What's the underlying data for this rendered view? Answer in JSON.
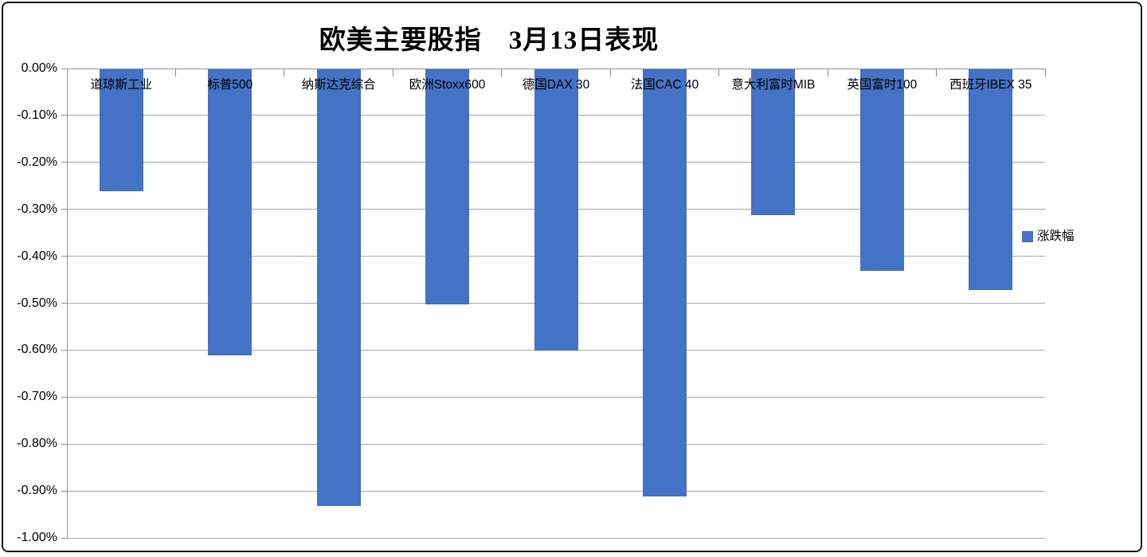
{
  "chart_data": {
    "type": "bar",
    "title": "欧美主要股指　3月13日表现",
    "categories": [
      "道琼斯工业",
      "标普500",
      "纳斯达克综合",
      "欧洲Stoxx600",
      "德国DAX 30",
      "法国CAC 40",
      "意大利富时MIB",
      "英国富时100",
      "西班牙IBEX 35"
    ],
    "series": [
      {
        "name": "涨跌幅",
        "values": [
          -0.26,
          -0.61,
          -0.93,
          -0.5,
          -0.6,
          -0.91,
          -0.31,
          -0.43,
          -0.47
        ]
      }
    ],
    "value_unit": "%",
    "xlabel": "",
    "ylabel": "",
    "ylim": [
      -1.0,
      0.0
    ],
    "ytick_step": 0.1,
    "ytick_labels": [
      "0.00%",
      "-0.10%",
      "-0.20%",
      "-0.30%",
      "-0.40%",
      "-0.50%",
      "-0.60%",
      "-0.70%",
      "-0.80%",
      "-0.90%",
      "-1.00%"
    ],
    "grid": true,
    "legend_position": "right",
    "colors": {
      "bar": "#4472C4",
      "gridline": "#A8A8A8",
      "axis": "#8F8F8F",
      "background": "#FFFFFF",
      "border": "#171717",
      "text": "#000000"
    }
  }
}
